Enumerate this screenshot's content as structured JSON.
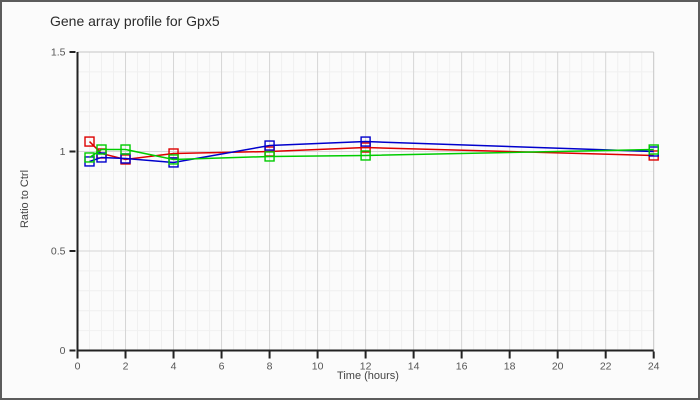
{
  "chart_data": {
    "type": "line",
    "title": "Gene array profile for Gpx5",
    "xlabel": "Time (hours)",
    "ylabel": "Ratio to Ctrl",
    "xlim": [
      0,
      24
    ],
    "ylim": [
      0,
      1.5
    ],
    "x_major_ticks": [
      0,
      2,
      4,
      6,
      8,
      10,
      12,
      14,
      16,
      18,
      20,
      22,
      24
    ],
    "x_tick_labels": [
      "0",
      "2",
      "4",
      "6",
      "8",
      "10",
      "12",
      "14",
      "16",
      "18",
      "20",
      "22",
      "24"
    ],
    "y_major_ticks": [
      0,
      0.5,
      1,
      1.5
    ],
    "y_tick_labels": [
      "0",
      "0.5",
      "1",
      "1.5"
    ],
    "x_minor_step": 0.5,
    "y_minor_step": 0.1,
    "grid": true,
    "legend": "none",
    "marker": "open-square",
    "x": [
      0.5,
      1,
      2,
      4,
      8,
      12,
      24
    ],
    "series": [
      {
        "name": "red",
        "color": "#dd0000",
        "values": [
          1.05,
          0.99,
          0.96,
          0.99,
          1.0,
          1.02,
          0.98
        ]
      },
      {
        "name": "blue",
        "color": "#0000cc",
        "values": [
          0.95,
          0.97,
          0.965,
          0.945,
          1.03,
          1.05,
          1.0
        ]
      },
      {
        "name": "green",
        "color": "#00cc00",
        "values": [
          0.97,
          1.01,
          1.01,
          0.96,
          0.975,
          0.98,
          1.01
        ]
      }
    ],
    "colors": {
      "grid_minor": "#f0f0f0",
      "grid_major": "#d6d6d6",
      "plot_border": "#c6c6c6",
      "axis": "#222222",
      "tick_label": "#555555"
    }
  }
}
